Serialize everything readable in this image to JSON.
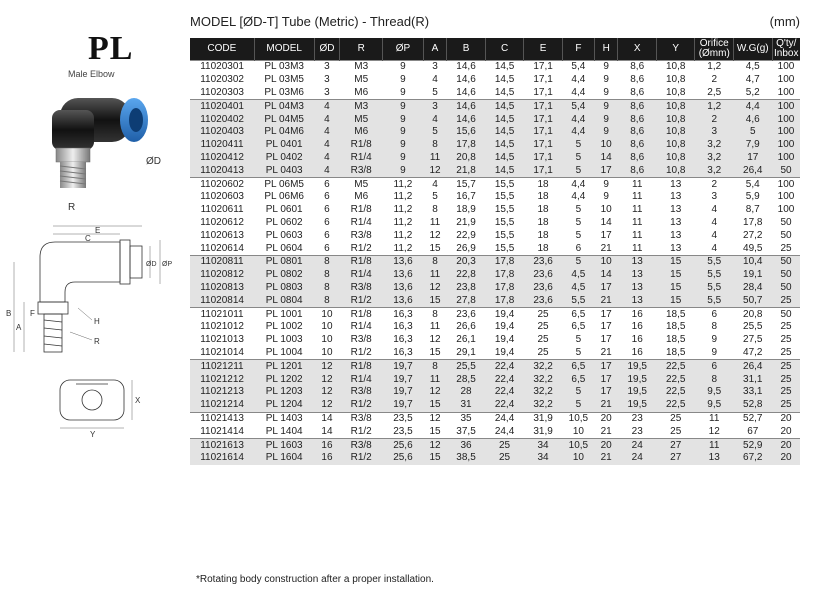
{
  "brand": {
    "code": "PL",
    "subtitle": "Male Elbow"
  },
  "photo_labels": {
    "od": "ØD",
    "r": "R"
  },
  "drawing_labels": {
    "e": "E",
    "c": "C",
    "d": "ØD",
    "p": "ØP",
    "b": "B",
    "a": "A",
    "f": "F",
    "h": "H",
    "r": "R",
    "x": "X",
    "y": "Y"
  },
  "header": {
    "model": "MODEL [ØD-T]  Tube (Metric) - Thread(R)",
    "unit": "(mm)"
  },
  "columns": [
    "CODE",
    "MODEL",
    "ØD",
    "R",
    "ØP",
    "A",
    "B",
    "C",
    "E",
    "F",
    "H",
    "X",
    "Y",
    "Orifice (Ømm)",
    "W.G(g)",
    "Q'ty/ Inbox"
  ],
  "rows": [
    [
      "11020301",
      "PL 03M3",
      "3",
      "M3",
      "9",
      "3",
      "14,6",
      "14,5",
      "17,1",
      "5,4",
      "9",
      "8,6",
      "10,8",
      "1,2",
      "4,5",
      "100"
    ],
    [
      "11020302",
      "PL 03M5",
      "3",
      "M5",
      "9",
      "4",
      "14,6",
      "14,5",
      "17,1",
      "4,4",
      "9",
      "8,6",
      "10,8",
      "2",
      "4,7",
      "100"
    ],
    [
      "11020303",
      "PL 03M6",
      "3",
      "M6",
      "9",
      "5",
      "14,6",
      "14,5",
      "17,1",
      "4,4",
      "9",
      "8,6",
      "10,8",
      "2,5",
      "5,2",
      "100"
    ],
    [
      "11020401",
      "PL 04M3",
      "4",
      "M3",
      "9",
      "3",
      "14,6",
      "14,5",
      "17,1",
      "5,4",
      "9",
      "8,6",
      "10,8",
      "1,2",
      "4,4",
      "100"
    ],
    [
      "11020402",
      "PL 04M5",
      "4",
      "M5",
      "9",
      "4",
      "14,6",
      "14,5",
      "17,1",
      "4,4",
      "9",
      "8,6",
      "10,8",
      "2",
      "4,6",
      "100"
    ],
    [
      "11020403",
      "PL 04M6",
      "4",
      "M6",
      "9",
      "5",
      "15,6",
      "14,5",
      "17,1",
      "4,4",
      "9",
      "8,6",
      "10,8",
      "3",
      "5",
      "100"
    ],
    [
      "11020411",
      "PL 0401",
      "4",
      "R1/8",
      "9",
      "8",
      "17,8",
      "14,5",
      "17,1",
      "5",
      "10",
      "8,6",
      "10,8",
      "3,2",
      "7,9",
      "100"
    ],
    [
      "11020412",
      "PL 0402",
      "4",
      "R1/4",
      "9",
      "11",
      "20,8",
      "14,5",
      "17,1",
      "5",
      "14",
      "8,6",
      "10,8",
      "3,2",
      "17",
      "100"
    ],
    [
      "11020413",
      "PL 0403",
      "4",
      "R3/8",
      "9",
      "12",
      "21,8",
      "14,5",
      "17,1",
      "5",
      "17",
      "8,6",
      "10,8",
      "3,2",
      "26,4",
      "50"
    ],
    [
      "11020602",
      "PL 06M5",
      "6",
      "M5",
      "11,2",
      "4",
      "15,7",
      "15,5",
      "18",
      "4,4",
      "9",
      "11",
      "13",
      "2",
      "5,4",
      "100"
    ],
    [
      "11020603",
      "PL 06M6",
      "6",
      "M6",
      "11,2",
      "5",
      "16,7",
      "15,5",
      "18",
      "4,4",
      "9",
      "11",
      "13",
      "3",
      "5,9",
      "100"
    ],
    [
      "11020611",
      "PL 0601",
      "6",
      "R1/8",
      "11,2",
      "8",
      "18,9",
      "15,5",
      "18",
      "5",
      "10",
      "11",
      "13",
      "4",
      "8,7",
      "100"
    ],
    [
      "11020612",
      "PL 0602",
      "6",
      "R1/4",
      "11,2",
      "11",
      "21,9",
      "15,5",
      "18",
      "5",
      "14",
      "11",
      "13",
      "4",
      "17,8",
      "50"
    ],
    [
      "11020613",
      "PL 0603",
      "6",
      "R3/8",
      "11,2",
      "12",
      "22,9",
      "15,5",
      "18",
      "5",
      "17",
      "11",
      "13",
      "4",
      "27,2",
      "50"
    ],
    [
      "11020614",
      "PL 0604",
      "6",
      "R1/2",
      "11,2",
      "15",
      "26,9",
      "15,5",
      "18",
      "6",
      "21",
      "11",
      "13",
      "4",
      "49,5",
      "25"
    ],
    [
      "11020811",
      "PL 0801",
      "8",
      "R1/8",
      "13,6",
      "8",
      "20,3",
      "17,8",
      "23,6",
      "5",
      "10",
      "13",
      "15",
      "5,5",
      "10,4",
      "50"
    ],
    [
      "11020812",
      "PL 0802",
      "8",
      "R1/4",
      "13,6",
      "11",
      "22,8",
      "17,8",
      "23,6",
      "4,5",
      "14",
      "13",
      "15",
      "5,5",
      "19,1",
      "50"
    ],
    [
      "11020813",
      "PL 0803",
      "8",
      "R3/8",
      "13,6",
      "12",
      "23,8",
      "17,8",
      "23,6",
      "4,5",
      "17",
      "13",
      "15",
      "5,5",
      "28,4",
      "50"
    ],
    [
      "11020814",
      "PL 0804",
      "8",
      "R1/2",
      "13,6",
      "15",
      "27,8",
      "17,8",
      "23,6",
      "5,5",
      "21",
      "13",
      "15",
      "5,5",
      "50,7",
      "25"
    ],
    [
      "11021011",
      "PL 1001",
      "10",
      "R1/8",
      "16,3",
      "8",
      "23,6",
      "19,4",
      "25",
      "6,5",
      "17",
      "16",
      "18,5",
      "6",
      "20,8",
      "50"
    ],
    [
      "11021012",
      "PL 1002",
      "10",
      "R1/4",
      "16,3",
      "11",
      "26,6",
      "19,4",
      "25",
      "6,5",
      "17",
      "16",
      "18,5",
      "8",
      "25,5",
      "25"
    ],
    [
      "11021013",
      "PL 1003",
      "10",
      "R3/8",
      "16,3",
      "12",
      "26,1",
      "19,4",
      "25",
      "5",
      "17",
      "16",
      "18,5",
      "9",
      "27,5",
      "25"
    ],
    [
      "11021014",
      "PL 1004",
      "10",
      "R1/2",
      "16,3",
      "15",
      "29,1",
      "19,4",
      "25",
      "5",
      "21",
      "16",
      "18,5",
      "9",
      "47,2",
      "25"
    ],
    [
      "11021211",
      "PL 1201",
      "12",
      "R1/8",
      "19,7",
      "8",
      "25,5",
      "22,4",
      "32,2",
      "6,5",
      "17",
      "19,5",
      "22,5",
      "6",
      "26,4",
      "25"
    ],
    [
      "11021212",
      "PL 1202",
      "12",
      "R1/4",
      "19,7",
      "11",
      "28,5",
      "22,4",
      "32,2",
      "6,5",
      "17",
      "19,5",
      "22,5",
      "8",
      "31,1",
      "25"
    ],
    [
      "11021213",
      "PL 1203",
      "12",
      "R3/8",
      "19,7",
      "12",
      "28",
      "22,4",
      "32,2",
      "5",
      "17",
      "19,5",
      "22,5",
      "9,5",
      "33,1",
      "25"
    ],
    [
      "11021214",
      "PL 1204",
      "12",
      "R1/2",
      "19,7",
      "15",
      "31",
      "22,4",
      "32,2",
      "5",
      "21",
      "19,5",
      "22,5",
      "9,5",
      "52,8",
      "25"
    ],
    [
      "11021413",
      "PL 1403",
      "14",
      "R3/8",
      "23,5",
      "12",
      "35",
      "24,4",
      "31,9",
      "10,5",
      "20",
      "23",
      "25",
      "11",
      "52,7",
      "20"
    ],
    [
      "11021414",
      "PL 1404",
      "14",
      "R1/2",
      "23,5",
      "15",
      "37,5",
      "24,4",
      "31,9",
      "10",
      "21",
      "23",
      "25",
      "12",
      "67",
      "20"
    ],
    [
      "11021613",
      "PL 1603",
      "16",
      "R3/8",
      "25,6",
      "12",
      "36",
      "25",
      "34",
      "10,5",
      "20",
      "24",
      "27",
      "11",
      "52,9",
      "20"
    ],
    [
      "11021614",
      "PL 1604",
      "16",
      "R1/2",
      "25,6",
      "15",
      "38,5",
      "25",
      "34",
      "10",
      "21",
      "24",
      "27",
      "13",
      "67,2",
      "20"
    ]
  ],
  "groups": [
    3,
    6,
    6,
    4,
    4,
    4,
    2,
    2
  ],
  "footnote": "*Rotating body construction after a proper installation.",
  "colors": {
    "header_bg": "#1a1a1a",
    "band_gray": "#e3e3e3",
    "fitting_blue": "#2d7fd0"
  }
}
